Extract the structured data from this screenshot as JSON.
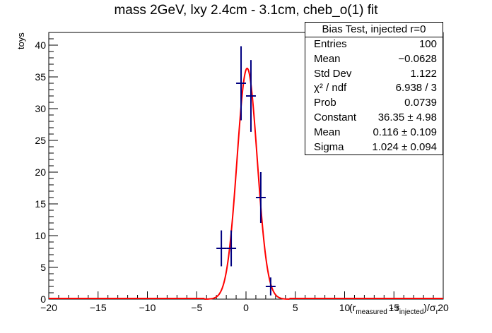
{
  "title": "mass 2GeV, lxy 2.4cm - 3.1cm, cheb_o(1) fit",
  "stats": {
    "header": "Bias Test, injected r=0",
    "rows": [
      {
        "label": "Entries",
        "value": "100"
      },
      {
        "label": "Mean",
        "value": "−0.0628"
      },
      {
        "label": "Std Dev",
        "value": "1.122"
      },
      {
        "label": "χ² / ndf",
        "value": "6.938 / 3"
      },
      {
        "label": "Prob",
        "value": "0.0739"
      },
      {
        "label": "Constant",
        "value": "36.35 ± 4.98"
      },
      {
        "label": "Mean",
        "value": "0.116 ± 0.109"
      },
      {
        "label": "Sigma",
        "value": "1.024 ± 0.094"
      }
    ]
  },
  "chart_data": {
    "type": "scatter",
    "title": "mass 2GeV, lxy 2.4cm - 3.1cm, cheb_o(1) fit",
    "ylabel": "toys",
    "xlabel_parts": {
      "open": "(r",
      "sub1": "measured",
      "mid": " - r",
      "sub2": "injected",
      "close": ")/σ",
      "sub3": "r"
    },
    "xlim": [
      -20,
      20
    ],
    "ylim": [
      0,
      42
    ],
    "x_ticks": [
      -20,
      -15,
      -10,
      -5,
      0,
      5,
      10,
      15,
      20
    ],
    "x_tick_labels": [
      "−20",
      "−15",
      "−10",
      "−5",
      "0",
      "5",
      "10",
      "15",
      "20"
    ],
    "y_ticks": [
      0,
      5,
      10,
      15,
      20,
      25,
      30,
      35,
      40
    ],
    "bin_width": 1,
    "points": [
      {
        "x": -2.5,
        "y": 8
      },
      {
        "x": -1.5,
        "y": 8
      },
      {
        "x": -0.5,
        "y": 34
      },
      {
        "x": 0.5,
        "y": 32
      },
      {
        "x": 1.5,
        "y": 16
      },
      {
        "x": 2.5,
        "y": 2
      }
    ],
    "fit": {
      "constant": 36.35,
      "mean": 0.116,
      "sigma": 1.024
    },
    "colors": {
      "points": "#000080",
      "fit": "#ff0000",
      "axis": "#000000"
    }
  }
}
